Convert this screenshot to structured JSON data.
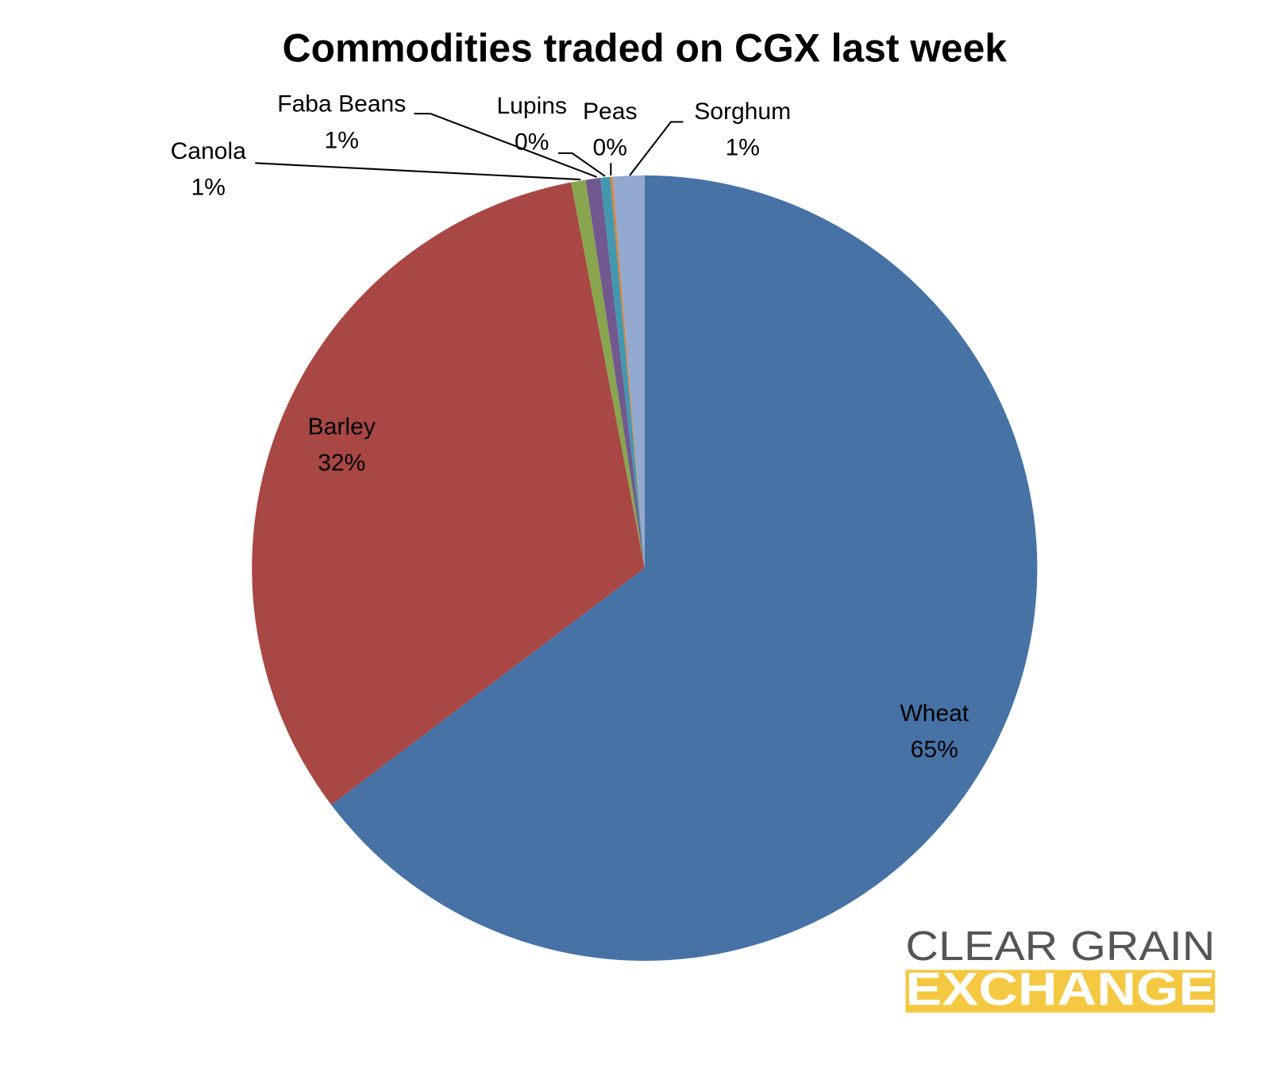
{
  "chart_data": {
    "type": "pie",
    "title": "Commodities traded on CGX last week",
    "categories": [
      "Wheat",
      "Barley",
      "Canola",
      "Faba Beans",
      "Lupins",
      "Peas",
      "Sorghum"
    ],
    "values": [
      64.7,
      32.3,
      0.6,
      0.6,
      0.4,
      0.1,
      1.3
    ],
    "value_labels": [
      "65%",
      "32%",
      "1%",
      "1%",
      "0%",
      "0%",
      "1%"
    ],
    "colors": [
      "#4672a6",
      "#a84744",
      "#89a54e",
      "#71588f",
      "#4198af",
      "#db843d",
      "#93a9cf"
    ]
  },
  "logo": {
    "line1": "CLEAR GRAIN",
    "line2": "EXCHANGE"
  }
}
